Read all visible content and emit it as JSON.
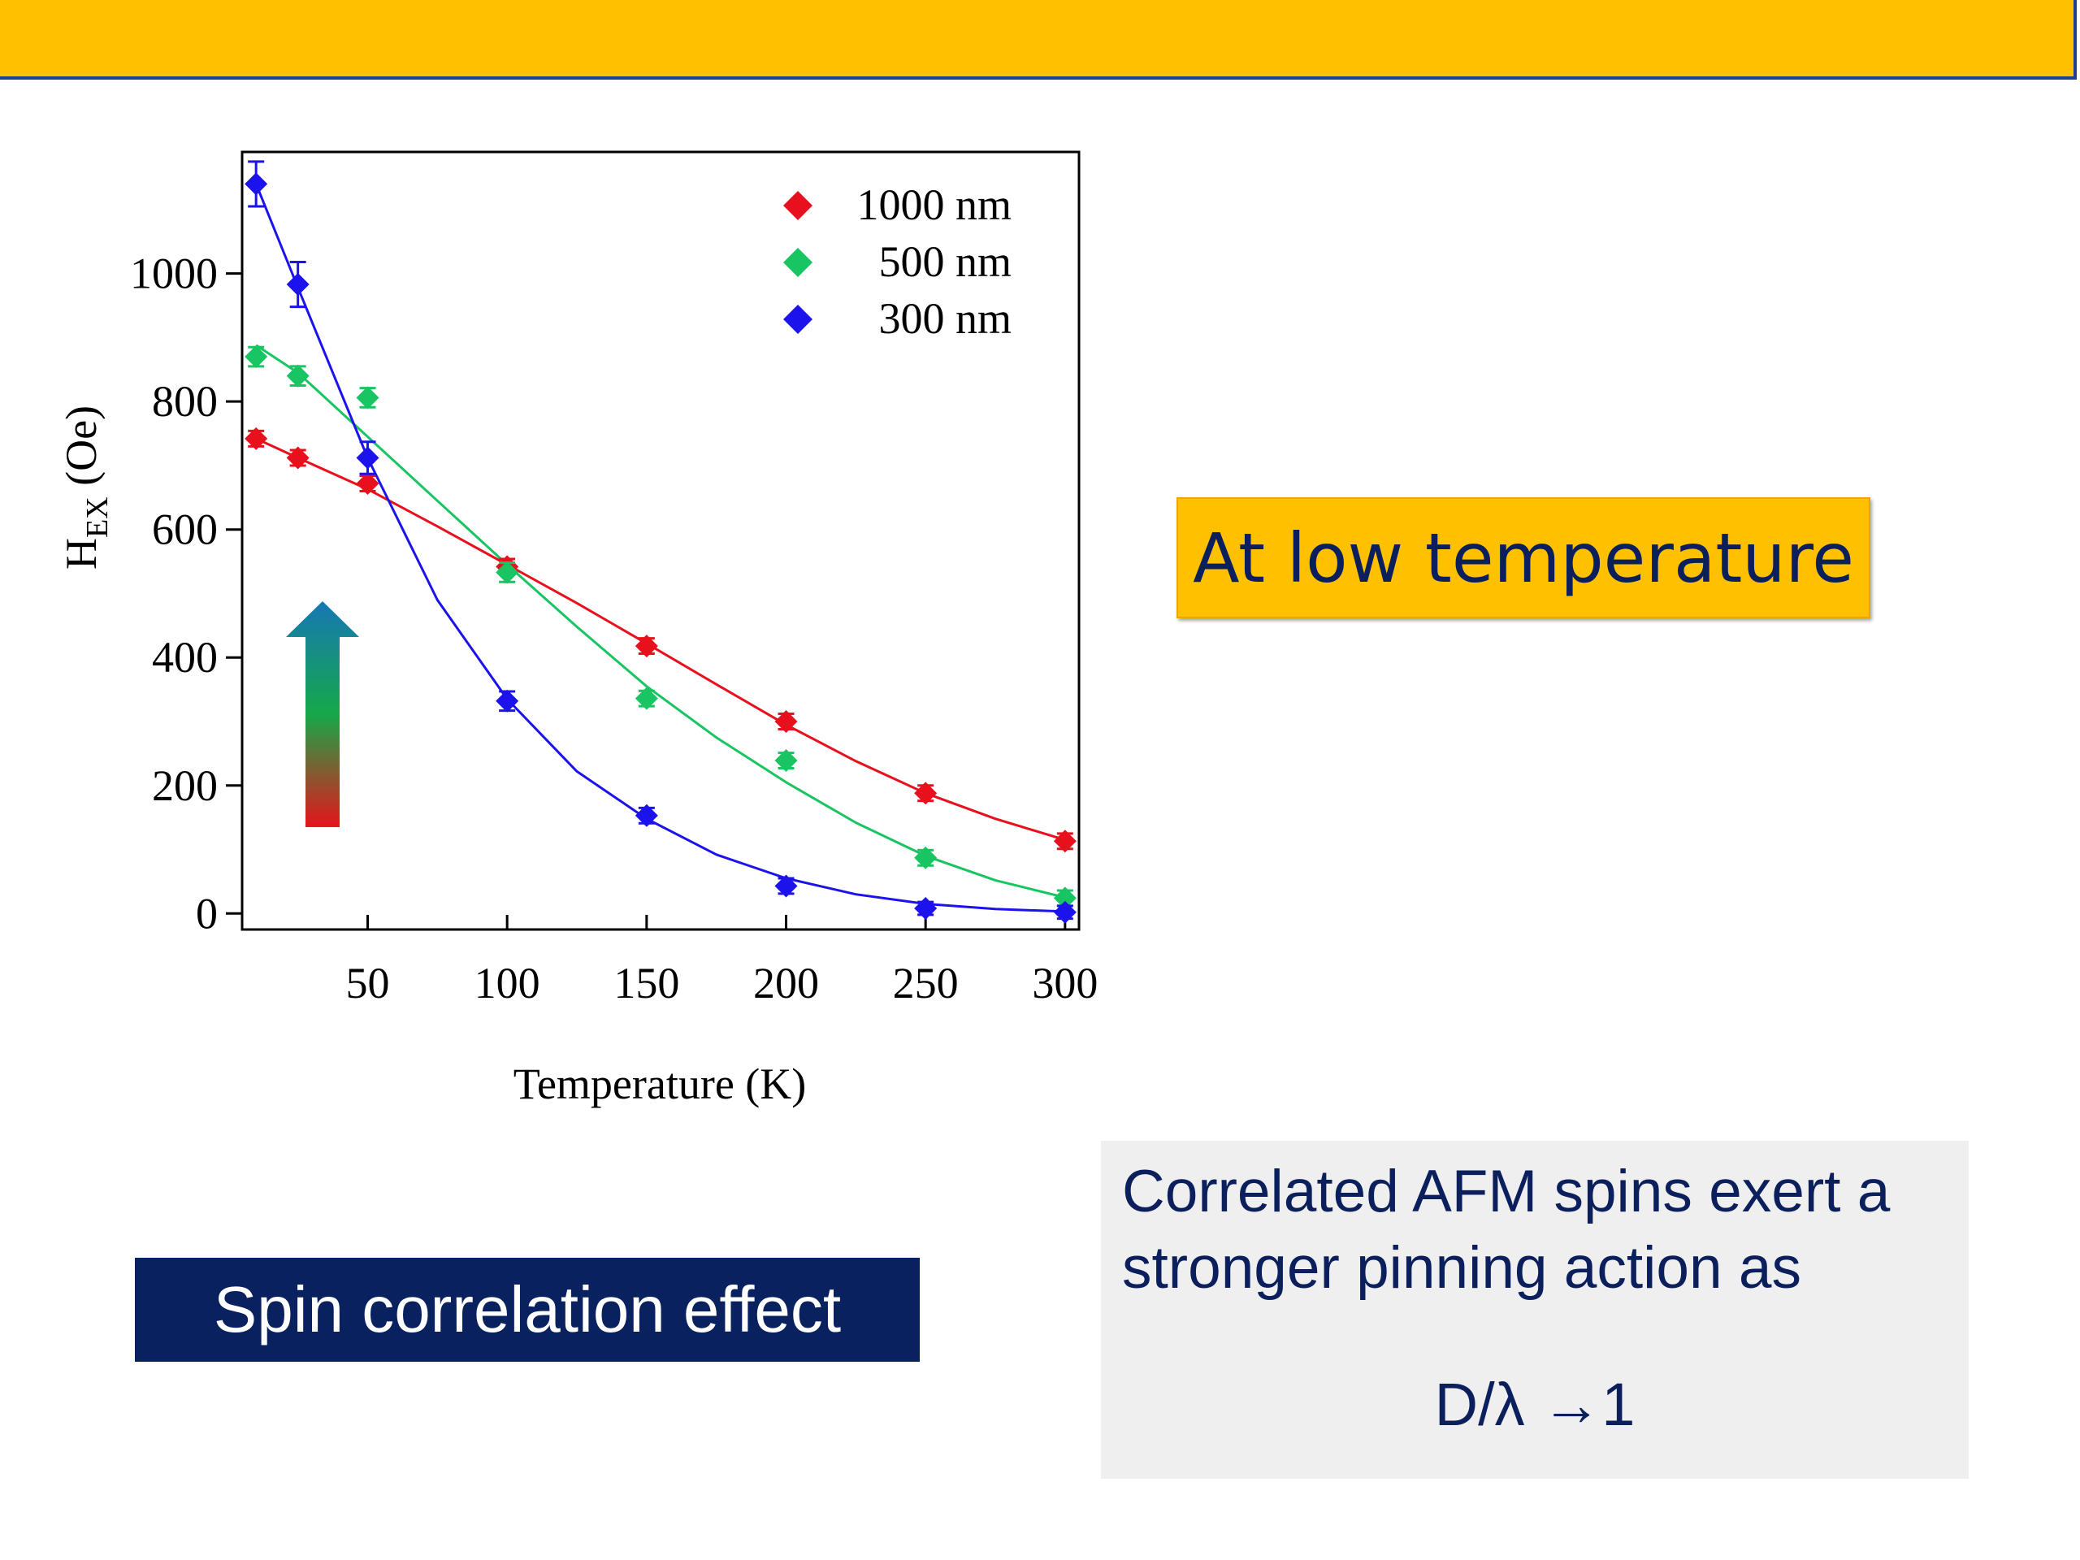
{
  "callout": {
    "text": "At low temperature"
  },
  "spin_box": {
    "text": "Spin correlation effect"
  },
  "note": {
    "line1": "Correlated AFM spins exert a",
    "line2": "stronger pinning action as",
    "formula": "D/λ →1"
  },
  "chart_data": {
    "type": "scatter",
    "xlabel": "Temperature (K)",
    "ylabel_main": "H",
    "ylabel_sub": "EX",
    "ylabel_unit": "(Oe)",
    "xlim": [
      5,
      305
    ],
    "ylim": [
      -25,
      1190
    ],
    "x_ticks": [
      50,
      100,
      150,
      200,
      250,
      300
    ],
    "y_ticks": [
      0,
      200,
      400,
      600,
      800,
      1000
    ],
    "legend_position": "top-right",
    "arrow_colors": [
      "#e6141b",
      "#16a84a",
      "#1677b4"
    ],
    "series": [
      {
        "name": "1000 nm",
        "color": "#e8101c",
        "x": [
          10,
          25,
          50,
          100,
          150,
          200,
          250,
          300
        ],
        "y": [
          742,
          712,
          672,
          542,
          418,
          300,
          188,
          113
        ],
        "err": [
          12,
          12,
          12,
          12,
          12,
          12,
          12,
          12
        ],
        "fit": [
          [
            10,
            742
          ],
          [
            25,
            712
          ],
          [
            50,
            663
          ],
          [
            75,
            605
          ],
          [
            100,
            545
          ],
          [
            125,
            485
          ],
          [
            150,
            422
          ],
          [
            175,
            358
          ],
          [
            200,
            295
          ],
          [
            225,
            238
          ],
          [
            250,
            188
          ],
          [
            275,
            148
          ],
          [
            300,
            115
          ]
        ]
      },
      {
        "name": "500 nm",
        "color": "#19c462",
        "x": [
          10,
          25,
          50,
          100,
          150,
          200,
          250,
          300
        ],
        "y": [
          870,
          840,
          806,
          533,
          336,
          239,
          87,
          24
        ],
        "err": [
          15,
          15,
          15,
          15,
          12,
          12,
          12,
          12
        ],
        "fit": [
          [
            10,
            888
          ],
          [
            25,
            845
          ],
          [
            50,
            745
          ],
          [
            75,
            645
          ],
          [
            100,
            545
          ],
          [
            125,
            448
          ],
          [
            150,
            355
          ],
          [
            175,
            275
          ],
          [
            200,
            205
          ],
          [
            225,
            142
          ],
          [
            250,
            90
          ],
          [
            275,
            52
          ],
          [
            300,
            25
          ]
        ]
      },
      {
        "name": "300 nm",
        "color": "#1b12ec",
        "x": [
          10,
          25,
          50,
          100,
          150,
          200,
          250,
          300
        ],
        "y": [
          1140,
          983,
          712,
          332,
          153,
          43,
          8,
          2
        ],
        "err": [
          35,
          35,
          25,
          15,
          12,
          12,
          10,
          10
        ],
        "fit": [
          [
            10,
            1140
          ],
          [
            25,
            978
          ],
          [
            50,
            712
          ],
          [
            75,
            490
          ],
          [
            100,
            335
          ],
          [
            125,
            222
          ],
          [
            150,
            148
          ],
          [
            175,
            92
          ],
          [
            200,
            55
          ],
          [
            225,
            30
          ],
          [
            250,
            15
          ],
          [
            275,
            7
          ],
          [
            300,
            3
          ]
        ]
      }
    ]
  }
}
